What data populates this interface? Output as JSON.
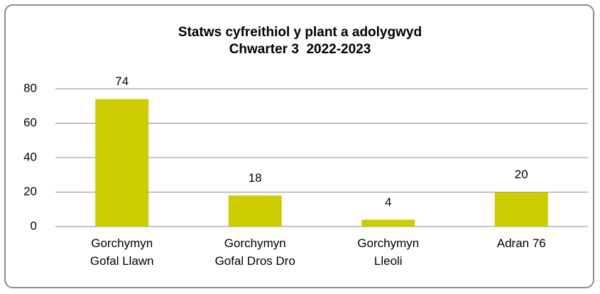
{
  "chart_data": {
    "type": "bar",
    "title": "Statws cyfreithiol y plant a adolygwyd\nChwarter 3  2022-2023",
    "categories": [
      "Gorchymyn\nGofal Llawn",
      "Gorchymyn\nGofal Dros Dro",
      "Gorchymyn\nLleoli",
      "Adran 76"
    ],
    "values": [
      74,
      18,
      4,
      20
    ],
    "color": "#cccc00",
    "ylim": [
      0,
      80
    ],
    "yticks": [
      0,
      20,
      40,
      60,
      80
    ],
    "grid": true
  }
}
